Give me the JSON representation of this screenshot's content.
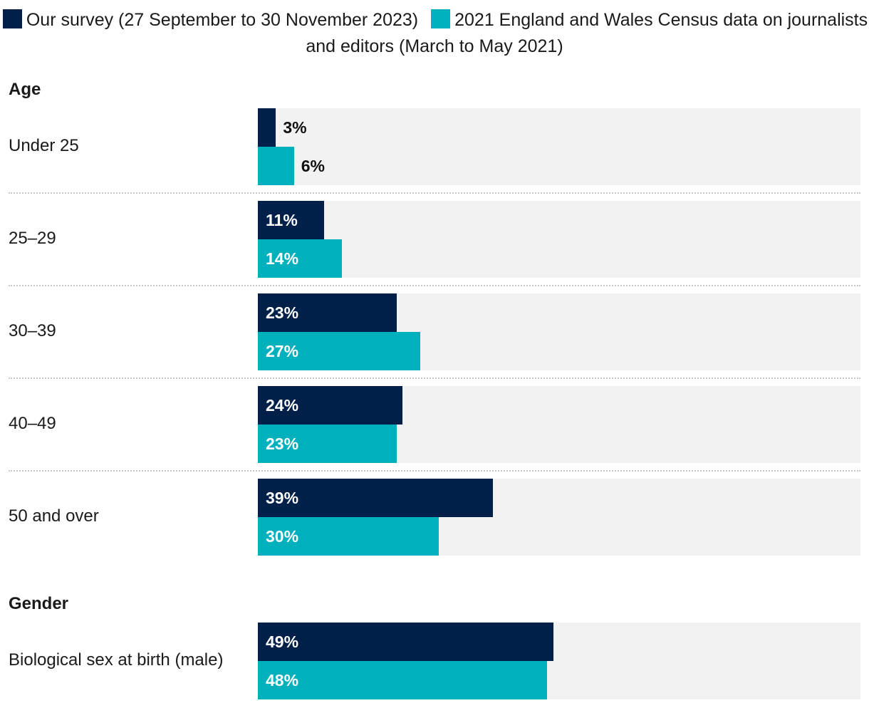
{
  "legend": {
    "series_0": "Our survey (27 September to 30 November 2023)",
    "series_1": "2021 England and Wales Census data on journalists and editors (March to May 2021)"
  },
  "colors": {
    "series_0": "#00204a",
    "series_1": "#00b0bd",
    "track": "#f2f2f2"
  },
  "chart_data": {
    "type": "bar",
    "orientation": "horizontal",
    "xlim": [
      0,
      100
    ],
    "unit": "%",
    "series": [
      {
        "name": "Our survey (27 September to 30 November 2023)"
      },
      {
        "name": "2021 England and Wales Census data on journalists and editors (March to May 2021)"
      }
    ],
    "sections": [
      {
        "title": "Age",
        "categories": [
          {
            "label": "Under 25",
            "values": [
              3,
              6
            ]
          },
          {
            "label": "25–29",
            "values": [
              11,
              14
            ]
          },
          {
            "label": "30–39",
            "values": [
              23,
              27
            ]
          },
          {
            "label": "40–49",
            "values": [
              24,
              23
            ]
          },
          {
            "label": "50 and over",
            "values": [
              39,
              30
            ]
          }
        ]
      },
      {
        "title": "Gender",
        "categories": [
          {
            "label": "Biological sex at birth (male)",
            "values": [
              49,
              48
            ]
          }
        ]
      }
    ]
  }
}
